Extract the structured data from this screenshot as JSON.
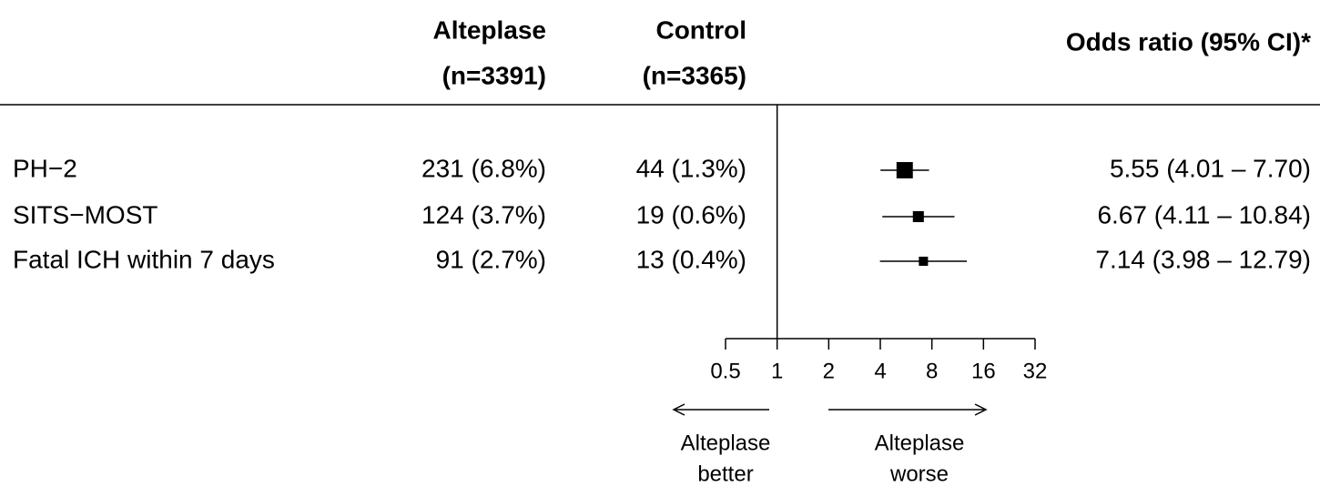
{
  "chart_data": {
    "type": "forest",
    "columns": [
      {
        "header": [
          "Alteplase",
          "(n=3391)"
        ],
        "values": [
          "231 (6.8%)",
          "124 (3.7%)",
          "91 (2.7%)"
        ]
      },
      {
        "header": [
          "Control",
          "(n=3365)"
        ],
        "values": [
          "44 (1.3%)",
          "19 (0.6%)",
          "13 (0.4%)"
        ]
      }
    ],
    "effect_header": "Odds ratio (95% CI)*",
    "categories": [
      "PH−2",
      "SITS−MOST",
      "Fatal ICH within 7 days"
    ],
    "values": [
      5.55,
      6.67,
      7.14
    ],
    "lower": [
      4.01,
      4.11,
      3.98
    ],
    "upper": [
      7.7,
      10.84,
      12.79
    ],
    "value_labels": [
      "5.55 (4.01 – 7.70)",
      "6.67 (4.11 – 10.84)",
      "7.14 (3.98 – 12.79)"
    ],
    "log_scale": true,
    "xlim": [
      0.5,
      32
    ],
    "xticks": [
      0.5,
      1,
      2,
      4,
      8,
      16,
      32
    ],
    "reference_line": 1,
    "annotations": [
      [
        "Alteplase",
        "better"
      ],
      [
        "Alteplase",
        "worse"
      ]
    ]
  }
}
